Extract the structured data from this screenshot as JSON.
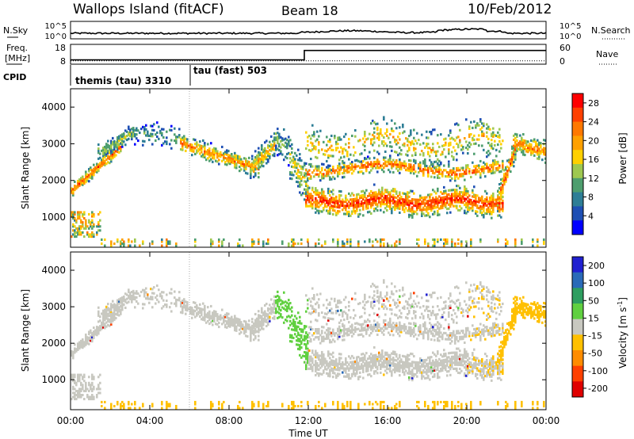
{
  "header": {
    "station": "Wallops Island (fitACF)",
    "beam": "Beam 18",
    "date": "10/Feb/2012"
  },
  "noise_panel": {
    "left_label": "N.Sky",
    "right_label": "N.Search",
    "ticks_left": [
      "10^5",
      "10^0"
    ],
    "ticks_right": [
      "10^5",
      "10^0"
    ]
  },
  "freq_panel": {
    "left_label_1": "Freq.",
    "left_label_2": "[MHz]",
    "ticks_left": [
      "18",
      "8"
    ],
    "right_label": "Nave",
    "ticks_right": [
      "60",
      "0"
    ],
    "freq_levels": [
      {
        "start_h": 0,
        "end_h": 11.8,
        "value": 10
      },
      {
        "start_h": 11.8,
        "end_h": 24,
        "value": 17
      }
    ],
    "nave_level": 15
  },
  "cpid": {
    "label": "CPID",
    "modes": [
      {
        "start_h": 0,
        "end_h": 6,
        "text": "themis (tau) 3310"
      },
      {
        "start_h": 6,
        "end_h": 24,
        "text": "tau (fast) 503"
      }
    ]
  },
  "chart_data": [
    {
      "type": "heatmap",
      "name": "power",
      "xlabel": "",
      "ylabel": "Slant Range [km]",
      "xlim": [
        0,
        24
      ],
      "ylim": [
        180,
        4500
      ],
      "y_ticks": [
        "1000",
        "2000",
        "3000",
        "4000"
      ],
      "colorbar_label": "Power [dB]",
      "colorbar_ticks": [
        "4",
        "8",
        "12",
        "16",
        "20",
        "24",
        "28"
      ],
      "colorbar_range": [
        0,
        30
      ],
      "colors": [
        "#0000ff",
        "#1e4fb4",
        "#2e7e96",
        "#4e9e6e",
        "#9ec850",
        "#ffd000",
        "#ffa000",
        "#ff7800",
        "#ff4000",
        "#ff0000"
      ]
    },
    {
      "type": "heatmap",
      "name": "velocity",
      "xlabel": "Time UT",
      "ylabel": "Slant Range [km]",
      "xlim": [
        0,
        24
      ],
      "ylim": [
        180,
        4500
      ],
      "x_ticks": [
        "00:00",
        "04:00",
        "08:00",
        "12:00",
        "16:00",
        "20:00",
        "00:00"
      ],
      "y_ticks": [
        "1000",
        "2000",
        "3000",
        "4000"
      ],
      "colorbar_label": "Velocity [m s",
      "colorbar_sup": "-1",
      "colorbar_ticks": [
        "200",
        "100",
        "50",
        "15",
        "-15",
        "-50",
        "-100",
        "-200"
      ],
      "colors": [
        "#2020d0",
        "#2a6ab8",
        "#2e9e60",
        "#60d040",
        "#c8c8c0",
        "#ffc000",
        "#ff8c00",
        "#ff4000",
        "#e00000"
      ]
    }
  ]
}
